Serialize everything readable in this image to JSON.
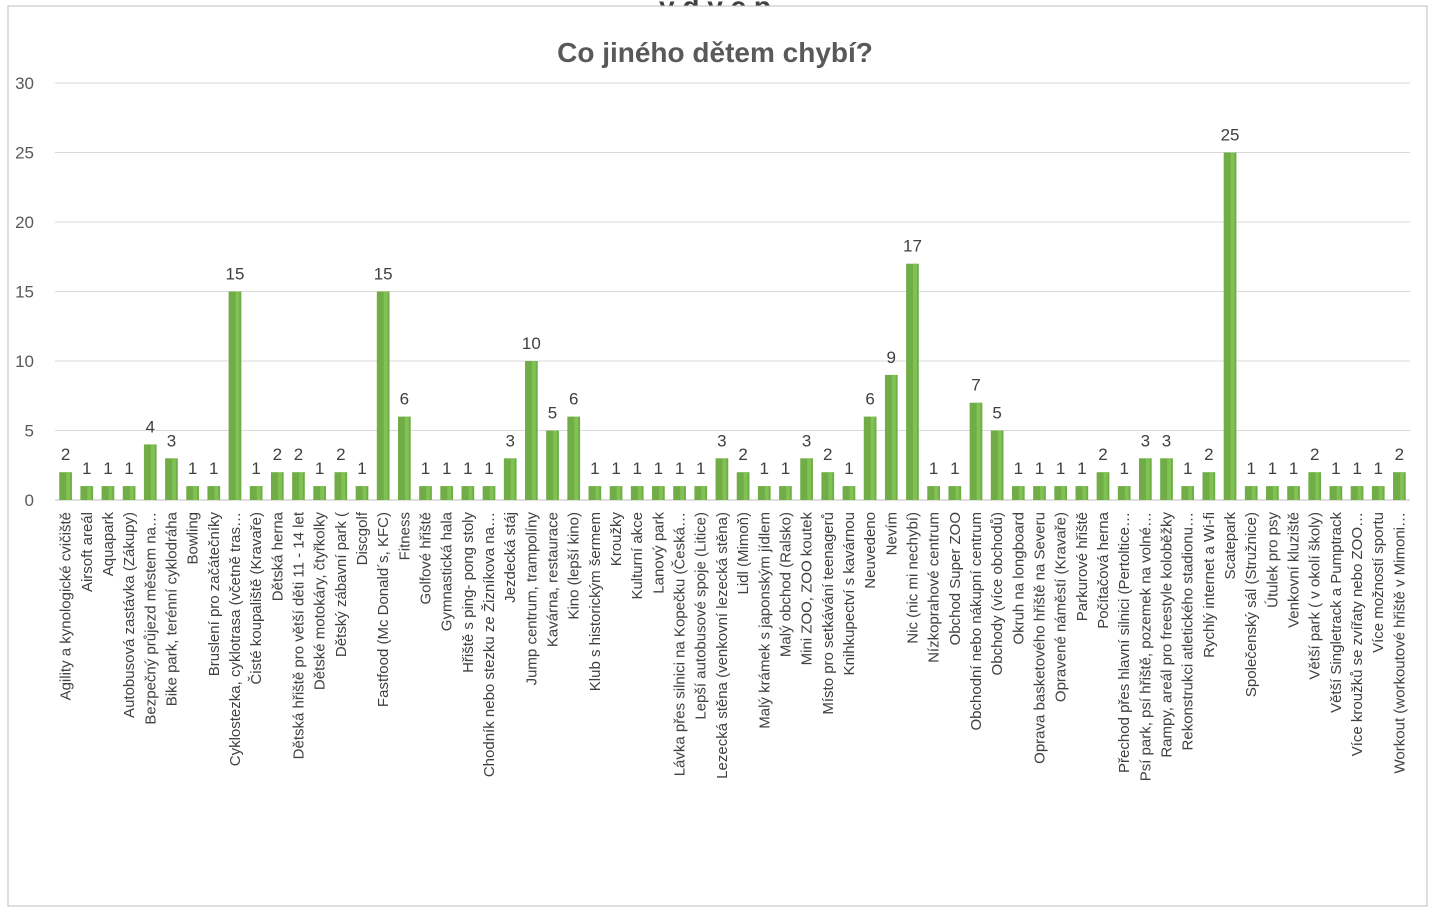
{
  "page": {
    "top_text": "y d y c p"
  },
  "colors": {
    "bar": "#70ad47",
    "bar_highlight": "#8fd35e",
    "grid": "#d9d9d9",
    "border": "#bfbfbf",
    "text": "#595959"
  },
  "chart_data": {
    "type": "bar",
    "title": "Co jiného dětem chybí?",
    "xlabel": "",
    "ylabel": "",
    "ylim": [
      0,
      30
    ],
    "yticks": [
      0,
      5,
      10,
      15,
      20,
      25,
      30
    ],
    "grid": true,
    "legend": "none",
    "categories": [
      "Agility a kynologické cvičiště",
      "Airsoft areál",
      "Aquapark",
      "Autobusová zastávka (Zákupy)",
      "Bezpečný průjezd městem na…",
      "Bike park, terénní cyklodráha",
      "Bowling",
      "Bruslení pro začátečníky",
      "Cyklostezka, cyklotrasa (včetně tras…",
      "Čisté koupaliště (Kravaře)",
      "Dětská herna",
      "Dětská hřiště pro větší děti 11 - 14 let",
      "Dětské motokáry, čtyřkolky",
      "Dětský zábavní park (",
      "Discgolf",
      "Fastfood (Mc Donald´s, KFC)",
      "Fitness",
      "Golfové hřiště",
      "Gymnastická hala",
      "Hřiště s ping- pong stoly",
      "Chodník nebo stezku ze Žizníkova na…",
      "Jezdecká stáj",
      "Jump centrum, trampolíny",
      "Kavárna, restaurace",
      "Kino (lepší kino)",
      "Klub s historickým šermem",
      "Kroužky",
      "Kulturní akce",
      "Lanový park",
      "Lávka přes silnici na Kopečku (Česká…",
      "Lepší autobusové spoje (Litice)",
      "Lezecká stěna (venkovní lezecká stěna)",
      "Lidl (Mimoň)",
      "Malý krámek s japonským jídlem",
      "Malý obchod (Ralsko)",
      "Mini ZOO, ZOO koutek",
      "Místo pro setkávání teenagerů",
      "Knihkupectví s kavárnou",
      "Neuvedeno",
      "Nevím",
      "Nic (nic mi nechybí)",
      "Nízkoprahové centrum",
      "Obchod Super ZOO",
      "Obchodní nebo nákupní centrum",
      "Obchody (více obchodů)",
      "Okruh na longboard",
      "Oprava basketového hřiště na Severu",
      "Opravené náměstí (Kravaře)",
      "Parkurové hřiště",
      "Počítačová herna",
      "Přechod přes hlavní silnici (Pertoltice…",
      "Psí park, psí hřiště, pozemek na volné…",
      "Rampy, areál pro freestyle koloběžky",
      "Rekonstrukci atletického stadionu…",
      "Rychlý internet a Wi-fi",
      "Scatepark",
      "Společenský sál (Stružnice)",
      "Útulek pro psy",
      "Venkovní kluziště",
      "Větší park ( v okolí školy)",
      "Větší Singletrack a Pumptrack",
      "Více kroužků se zvířaty nebo ZOO…",
      "Více možností sportu",
      "Workout (workoutové hřiště v Mimoni…"
    ],
    "values": [
      2,
      1,
      1,
      1,
      4,
      3,
      1,
      1,
      15,
      1,
      2,
      2,
      1,
      2,
      1,
      15,
      6,
      1,
      1,
      1,
      1,
      3,
      10,
      5,
      6,
      1,
      1,
      1,
      1,
      1,
      1,
      3,
      2,
      1,
      1,
      3,
      2,
      1,
      6,
      9,
      17,
      1,
      1,
      7,
      5,
      1,
      1,
      1,
      1,
      2,
      1,
      3,
      3,
      1,
      2,
      25,
      1,
      1,
      1,
      2,
      1,
      1,
      1,
      2
    ],
    "data_labels": [
      "2",
      "1",
      "1",
      "1",
      "4",
      "3",
      "1",
      "1",
      "15",
      "1",
      "2",
      "2",
      "1",
      "2",
      "1",
      "15",
      "6",
      "1",
      "1",
      "1",
      "1",
      "3",
      "10",
      "5",
      "6",
      "1",
      "1",
      "1",
      "1",
      "1",
      "1",
      "3",
      "2",
      "1",
      "1",
      "3",
      "2",
      "1",
      "6",
      "9",
      "17",
      "1",
      "1",
      "7",
      "5",
      "1",
      "1",
      "1",
      "1",
      "2",
      "1",
      "3",
      "3",
      "1",
      "2",
      "25",
      "1",
      "1",
      "1",
      "2",
      "1",
      "1",
      "1",
      "2"
    ]
  }
}
